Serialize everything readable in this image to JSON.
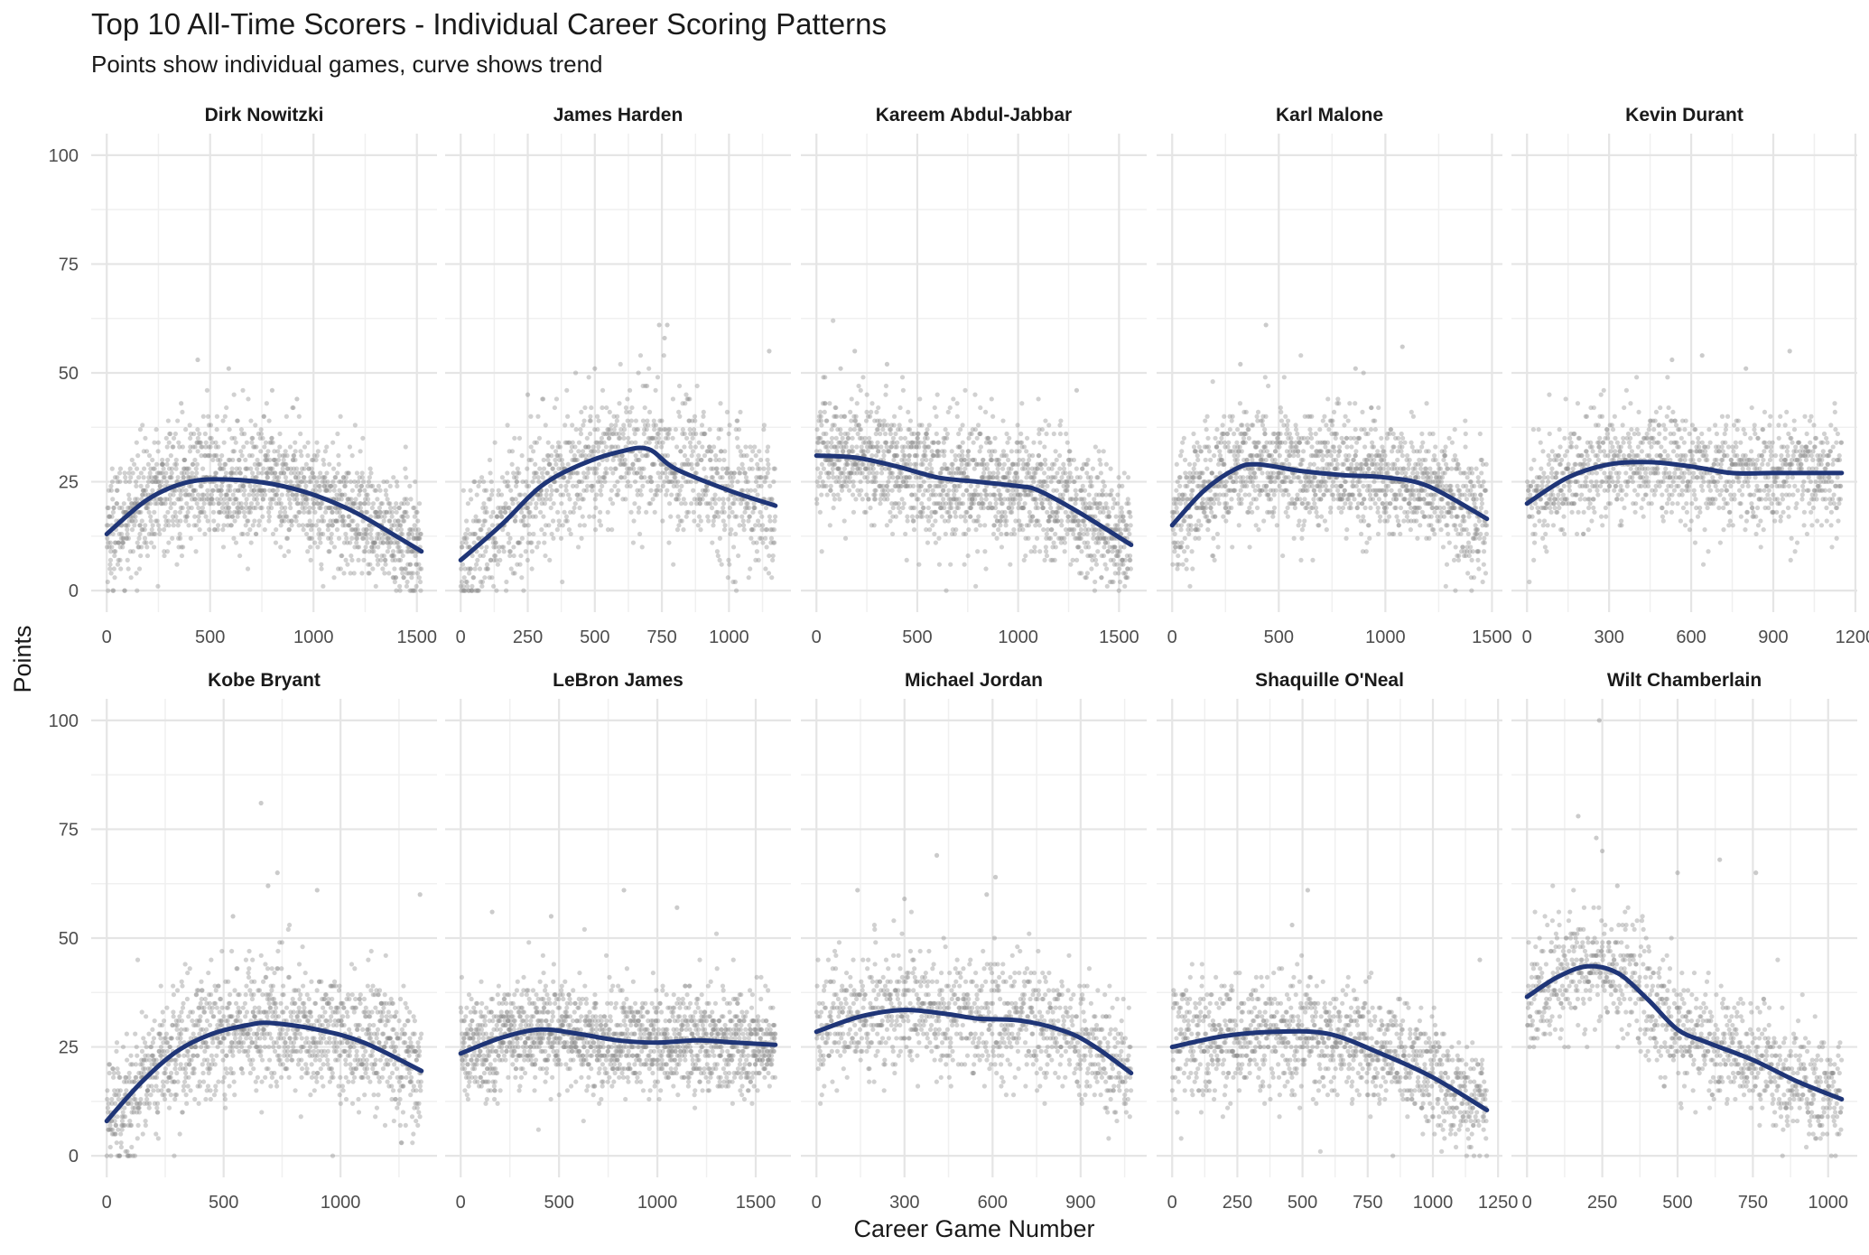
{
  "title": "Top 10 All-Time Scorers - Individual Career Scoring Patterns",
  "subtitle": "Points show individual games, curve shows trend",
  "chart_data": {
    "type": "scatter",
    "xlabel": "Career Game Number",
    "ylabel": "Points",
    "ylim": [
      0,
      100
    ],
    "y_ticks": [
      0,
      25,
      50,
      75,
      100
    ],
    "point_color": "#8c8c8c",
    "trend_color": "#1f3577",
    "panels": [
      {
        "name": "Dirk Nowitzki",
        "xlim": [
          0,
          1522
        ],
        "x_ticks": [
          0,
          500,
          1000,
          1500
        ],
        "trend": [
          [
            0,
            13
          ],
          [
            200,
            21
          ],
          [
            400,
            25
          ],
          [
            600,
            25.5
          ],
          [
            800,
            24.5
          ],
          [
            1000,
            22
          ],
          [
            1200,
            18
          ],
          [
            1400,
            12.5
          ],
          [
            1522,
            9
          ]
        ],
        "spread": 7,
        "outliers": [
          [
            440,
            53
          ],
          [
            590,
            51
          ],
          [
            800,
            46
          ],
          [
            360,
            43
          ],
          [
            920,
            44
          ]
        ]
      },
      {
        "name": "James Harden",
        "xlim": [
          0,
          1173
        ],
        "x_ticks": [
          0,
          250,
          500,
          750,
          1000
        ],
        "trend": [
          [
            0,
            7
          ],
          [
            150,
            15
          ],
          [
            300,
            24
          ],
          [
            450,
            29
          ],
          [
            600,
            32
          ],
          [
            700,
            32.5
          ],
          [
            800,
            28
          ],
          [
            1000,
            23
          ],
          [
            1173,
            19.5
          ]
        ],
        "spread": 8,
        "outliers": [
          [
            740,
            61
          ],
          [
            770,
            61
          ],
          [
            760,
            58
          ],
          [
            500,
            51
          ],
          [
            1150,
            55
          ],
          [
            250,
            45
          ]
        ]
      },
      {
        "name": "Kareem Abdul-Jabbar",
        "xlim": [
          0,
          1560
        ],
        "x_ticks": [
          0,
          500,
          1000,
          1500
        ],
        "trend": [
          [
            0,
            31
          ],
          [
            200,
            30.5
          ],
          [
            400,
            28.5
          ],
          [
            600,
            26
          ],
          [
            800,
            25
          ],
          [
            1000,
            24
          ],
          [
            1100,
            23
          ],
          [
            1300,
            18
          ],
          [
            1560,
            10.5
          ]
        ],
        "spread": 7,
        "outliers": [
          [
            190,
            55
          ],
          [
            350,
            52
          ],
          [
            120,
            51
          ],
          [
            1290,
            46
          ]
        ]
      },
      {
        "name": "Karl Malone",
        "xlim": [
          0,
          1476
        ],
        "x_ticks": [
          0,
          500,
          1000,
          1500
        ],
        "trend": [
          [
            0,
            15
          ],
          [
            150,
            23
          ],
          [
            300,
            28
          ],
          [
            400,
            29
          ],
          [
            600,
            27.5
          ],
          [
            800,
            26.5
          ],
          [
            1000,
            26
          ],
          [
            1200,
            24
          ],
          [
            1476,
            16.5
          ]
        ],
        "spread": 7,
        "outliers": [
          [
            440,
            61
          ],
          [
            1080,
            56
          ],
          [
            860,
            51
          ],
          [
            320,
            52
          ]
        ]
      },
      {
        "name": "Kevin Durant",
        "xlim": [
          0,
          1150
        ],
        "x_ticks": [
          0,
          300,
          600,
          900,
          1200
        ],
        "trend": [
          [
            0,
            20
          ],
          [
            150,
            26
          ],
          [
            300,
            29
          ],
          [
            450,
            29.5
          ],
          [
            600,
            28.5
          ],
          [
            750,
            27
          ],
          [
            900,
            27
          ],
          [
            1150,
            27
          ]
        ],
        "spread": 6.5,
        "outliers": [
          [
            960,
            55
          ],
          [
            640,
            54
          ],
          [
            800,
            51
          ],
          [
            530,
            53
          ]
        ]
      },
      {
        "name": "Kobe Bryant",
        "xlim": [
          0,
          1346
        ],
        "x_ticks": [
          0,
          500,
          1000
        ],
        "trend": [
          [
            0,
            8
          ],
          [
            150,
            17
          ],
          [
            300,
            24
          ],
          [
            450,
            28
          ],
          [
            600,
            30
          ],
          [
            700,
            30.5
          ],
          [
            900,
            29
          ],
          [
            1100,
            26
          ],
          [
            1346,
            19.5
          ]
        ],
        "spread": 7.5,
        "outliers": [
          [
            660,
            81
          ],
          [
            730,
            65
          ],
          [
            690,
            62
          ],
          [
            900,
            61
          ],
          [
            1340,
            60
          ],
          [
            540,
            55
          ]
        ]
      },
      {
        "name": "LeBron James",
        "xlim": [
          0,
          1600
        ],
        "x_ticks": [
          0,
          500,
          1000,
          1500
        ],
        "trend": [
          [
            0,
            23.5
          ],
          [
            200,
            27
          ],
          [
            400,
            29
          ],
          [
            600,
            28
          ],
          [
            800,
            26.5
          ],
          [
            1000,
            26
          ],
          [
            1200,
            26.5
          ],
          [
            1400,
            26
          ],
          [
            1600,
            25.5
          ]
        ],
        "spread": 6,
        "outliers": [
          [
            830,
            61
          ],
          [
            1100,
            57
          ],
          [
            160,
            56
          ],
          [
            460,
            55
          ]
        ]
      },
      {
        "name": "Michael Jordan",
        "xlim": [
          0,
          1072
        ],
        "x_ticks": [
          0,
          300,
          600,
          900
        ],
        "trend": [
          [
            0,
            28.5
          ],
          [
            150,
            32
          ],
          [
            300,
            33.5
          ],
          [
            450,
            32.5
          ],
          [
            550,
            31.5
          ],
          [
            700,
            31
          ],
          [
            850,
            28.5
          ],
          [
            950,
            25
          ],
          [
            1072,
            19
          ]
        ],
        "spread": 7,
        "outliers": [
          [
            410,
            69
          ],
          [
            610,
            64
          ],
          [
            140,
            61
          ],
          [
            580,
            60
          ],
          [
            300,
            59
          ]
        ]
      },
      {
        "name": "Shaquille O'Neal",
        "xlim": [
          0,
          1207
        ],
        "x_ticks": [
          0,
          250,
          500,
          750,
          1000,
          1250
        ],
        "trend": [
          [
            0,
            25
          ],
          [
            200,
            27.5
          ],
          [
            400,
            28.5
          ],
          [
            600,
            28
          ],
          [
            800,
            23.5
          ],
          [
            1000,
            18
          ],
          [
            1207,
            10.5
          ]
        ],
        "spread": 6.5,
        "outliers": [
          [
            520,
            61
          ],
          [
            460,
            53
          ],
          [
            1180,
            45
          ]
        ]
      },
      {
        "name": "Wilt Chamberlain",
        "xlim": [
          0,
          1045
        ],
        "x_ticks": [
          0,
          250,
          500,
          750,
          1000
        ],
        "trend": [
          [
            0,
            36.5
          ],
          [
            100,
            41
          ],
          [
            200,
            43.5
          ],
          [
            300,
            42
          ],
          [
            400,
            36
          ],
          [
            500,
            29
          ],
          [
            600,
            26
          ],
          [
            750,
            22
          ],
          [
            900,
            17
          ],
          [
            1045,
            13
          ]
        ],
        "spread": 7,
        "outliers": [
          [
            240,
            100
          ],
          [
            170,
            78
          ],
          [
            230,
            73
          ],
          [
            250,
            70
          ],
          [
            640,
            68
          ],
          [
            760,
            65
          ],
          [
            300,
            62
          ],
          [
            500,
            65
          ]
        ]
      }
    ]
  }
}
